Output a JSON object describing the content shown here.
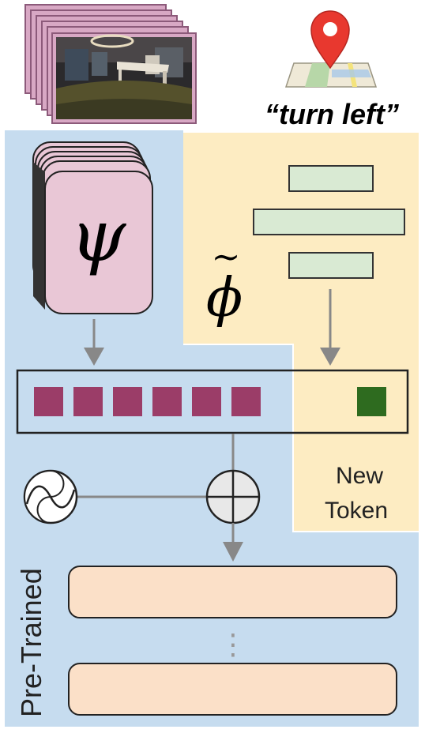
{
  "instruction": {
    "text": "“turn left”"
  },
  "encoder": {
    "symbol": "ψ"
  },
  "adapter": {
    "symbol": "ϕ",
    "tilde": "~"
  },
  "new_token": {
    "line1": "New",
    "line2": "Token"
  },
  "pretrained": {
    "label": "Pre-Trained"
  },
  "ellipsis": {
    "symbol": "⋮"
  },
  "colors": {
    "pretrained_bg": "#c6dcef",
    "new_bg": "#fdecc2",
    "encoder_card": "#e9c7d6",
    "token_visual": "#9b3d68",
    "token_new": "#2e6b1f",
    "adapter_bar": "#d9ead3",
    "layer_fill": "#fbe0c8",
    "map_pin": "#e8382f"
  }
}
